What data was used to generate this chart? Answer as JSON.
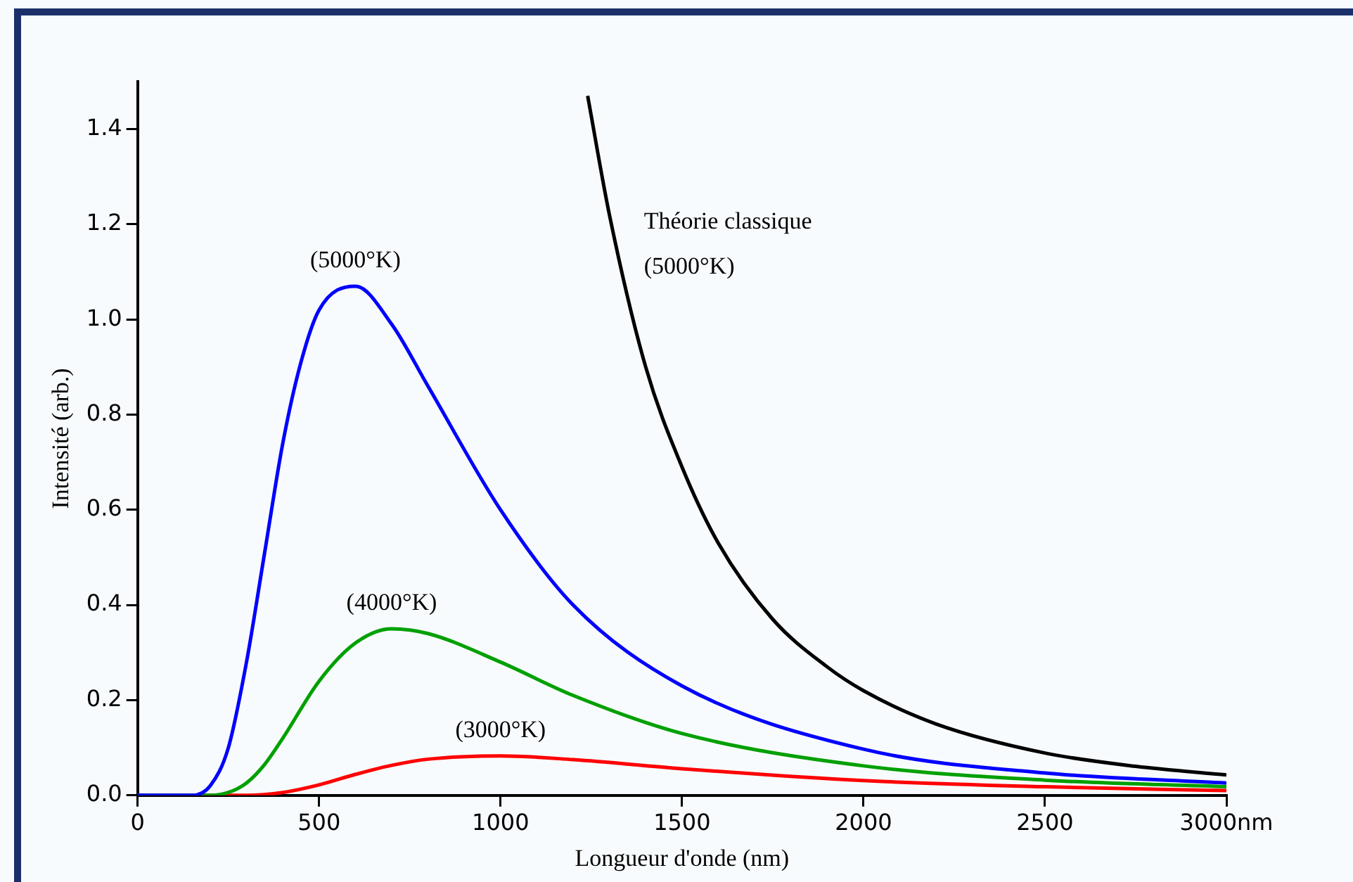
{
  "chart_data": {
    "type": "line",
    "xlabel": "Longueur d'onde (nm)",
    "ylabel": "Intensité (arb.)",
    "xlim": [
      0,
      3000
    ],
    "xticks": [
      0,
      500,
      1000,
      1500,
      2000,
      2500,
      {
        "value": 3000,
        "label": "3000nm"
      }
    ],
    "ylim": [
      0,
      1.5
    ],
    "yticks": [
      {
        "value": 0,
        "label": "0.0"
      },
      {
        "value": 0.2,
        "label": "0.2"
      },
      {
        "value": 0.4,
        "label": "0.4"
      },
      {
        "value": 0.6,
        "label": "0.6"
      },
      {
        "value": 0.8,
        "label": "0.8"
      },
      {
        "value": 1,
        "label": "1.0"
      },
      {
        "value": 1.2,
        "label": "1.2"
      },
      {
        "value": 1.4,
        "label": "1.4"
      }
    ],
    "grid": false,
    "legend": false,
    "marker": "none",
    "line_style": "solid",
    "series": [
      {
        "name": "(5000°K)",
        "color": "#0000ff",
        "x": [
          0,
          150,
          200,
          250,
          300,
          350,
          400,
          450,
          500,
          600,
          700,
          800,
          1000,
          1200,
          1500,
          2000,
          2500,
          3000
        ],
        "values": [
          0,
          0,
          0.02,
          0.1,
          0.28,
          0.51,
          0.74,
          0.91,
          1.02,
          1.07,
          0.99,
          0.86,
          0.6,
          0.4,
          0.23,
          0.097,
          0.047,
          0.026
        ]
      },
      {
        "name": "(4000°K)",
        "color": "#00a000",
        "x": [
          0,
          200,
          250,
          300,
          350,
          400,
          500,
          600,
          700,
          800,
          1000,
          1200,
          1500,
          2000,
          2500,
          3000
        ],
        "values": [
          0,
          0,
          0.006,
          0.026,
          0.065,
          0.12,
          0.24,
          0.32,
          0.35,
          0.34,
          0.28,
          0.21,
          0.13,
          0.062,
          0.032,
          0.018
        ]
      },
      {
        "name": "(3000°K)",
        "color": "#ff0000",
        "x": [
          0,
          300,
          400,
          500,
          600,
          700,
          800,
          1000,
          1200,
          1500,
          2000,
          2500,
          3000
        ],
        "values": [
          0,
          0,
          0.006,
          0.022,
          0.044,
          0.063,
          0.076,
          0.083,
          0.075,
          0.056,
          0.031,
          0.018,
          0.01
        ]
      },
      {
        "name": "Théorie classique (5000°K)",
        "color": "#000000",
        "x": [
          1240,
          1300,
          1400,
          1500,
          1600,
          1750,
          1900,
          2000,
          2200,
          2500,
          2750,
          3000
        ],
        "values": [
          1.47,
          1.22,
          0.9,
          0.69,
          0.53,
          0.37,
          0.27,
          0.22,
          0.15,
          0.089,
          0.061,
          0.043
        ]
      }
    ]
  }
}
